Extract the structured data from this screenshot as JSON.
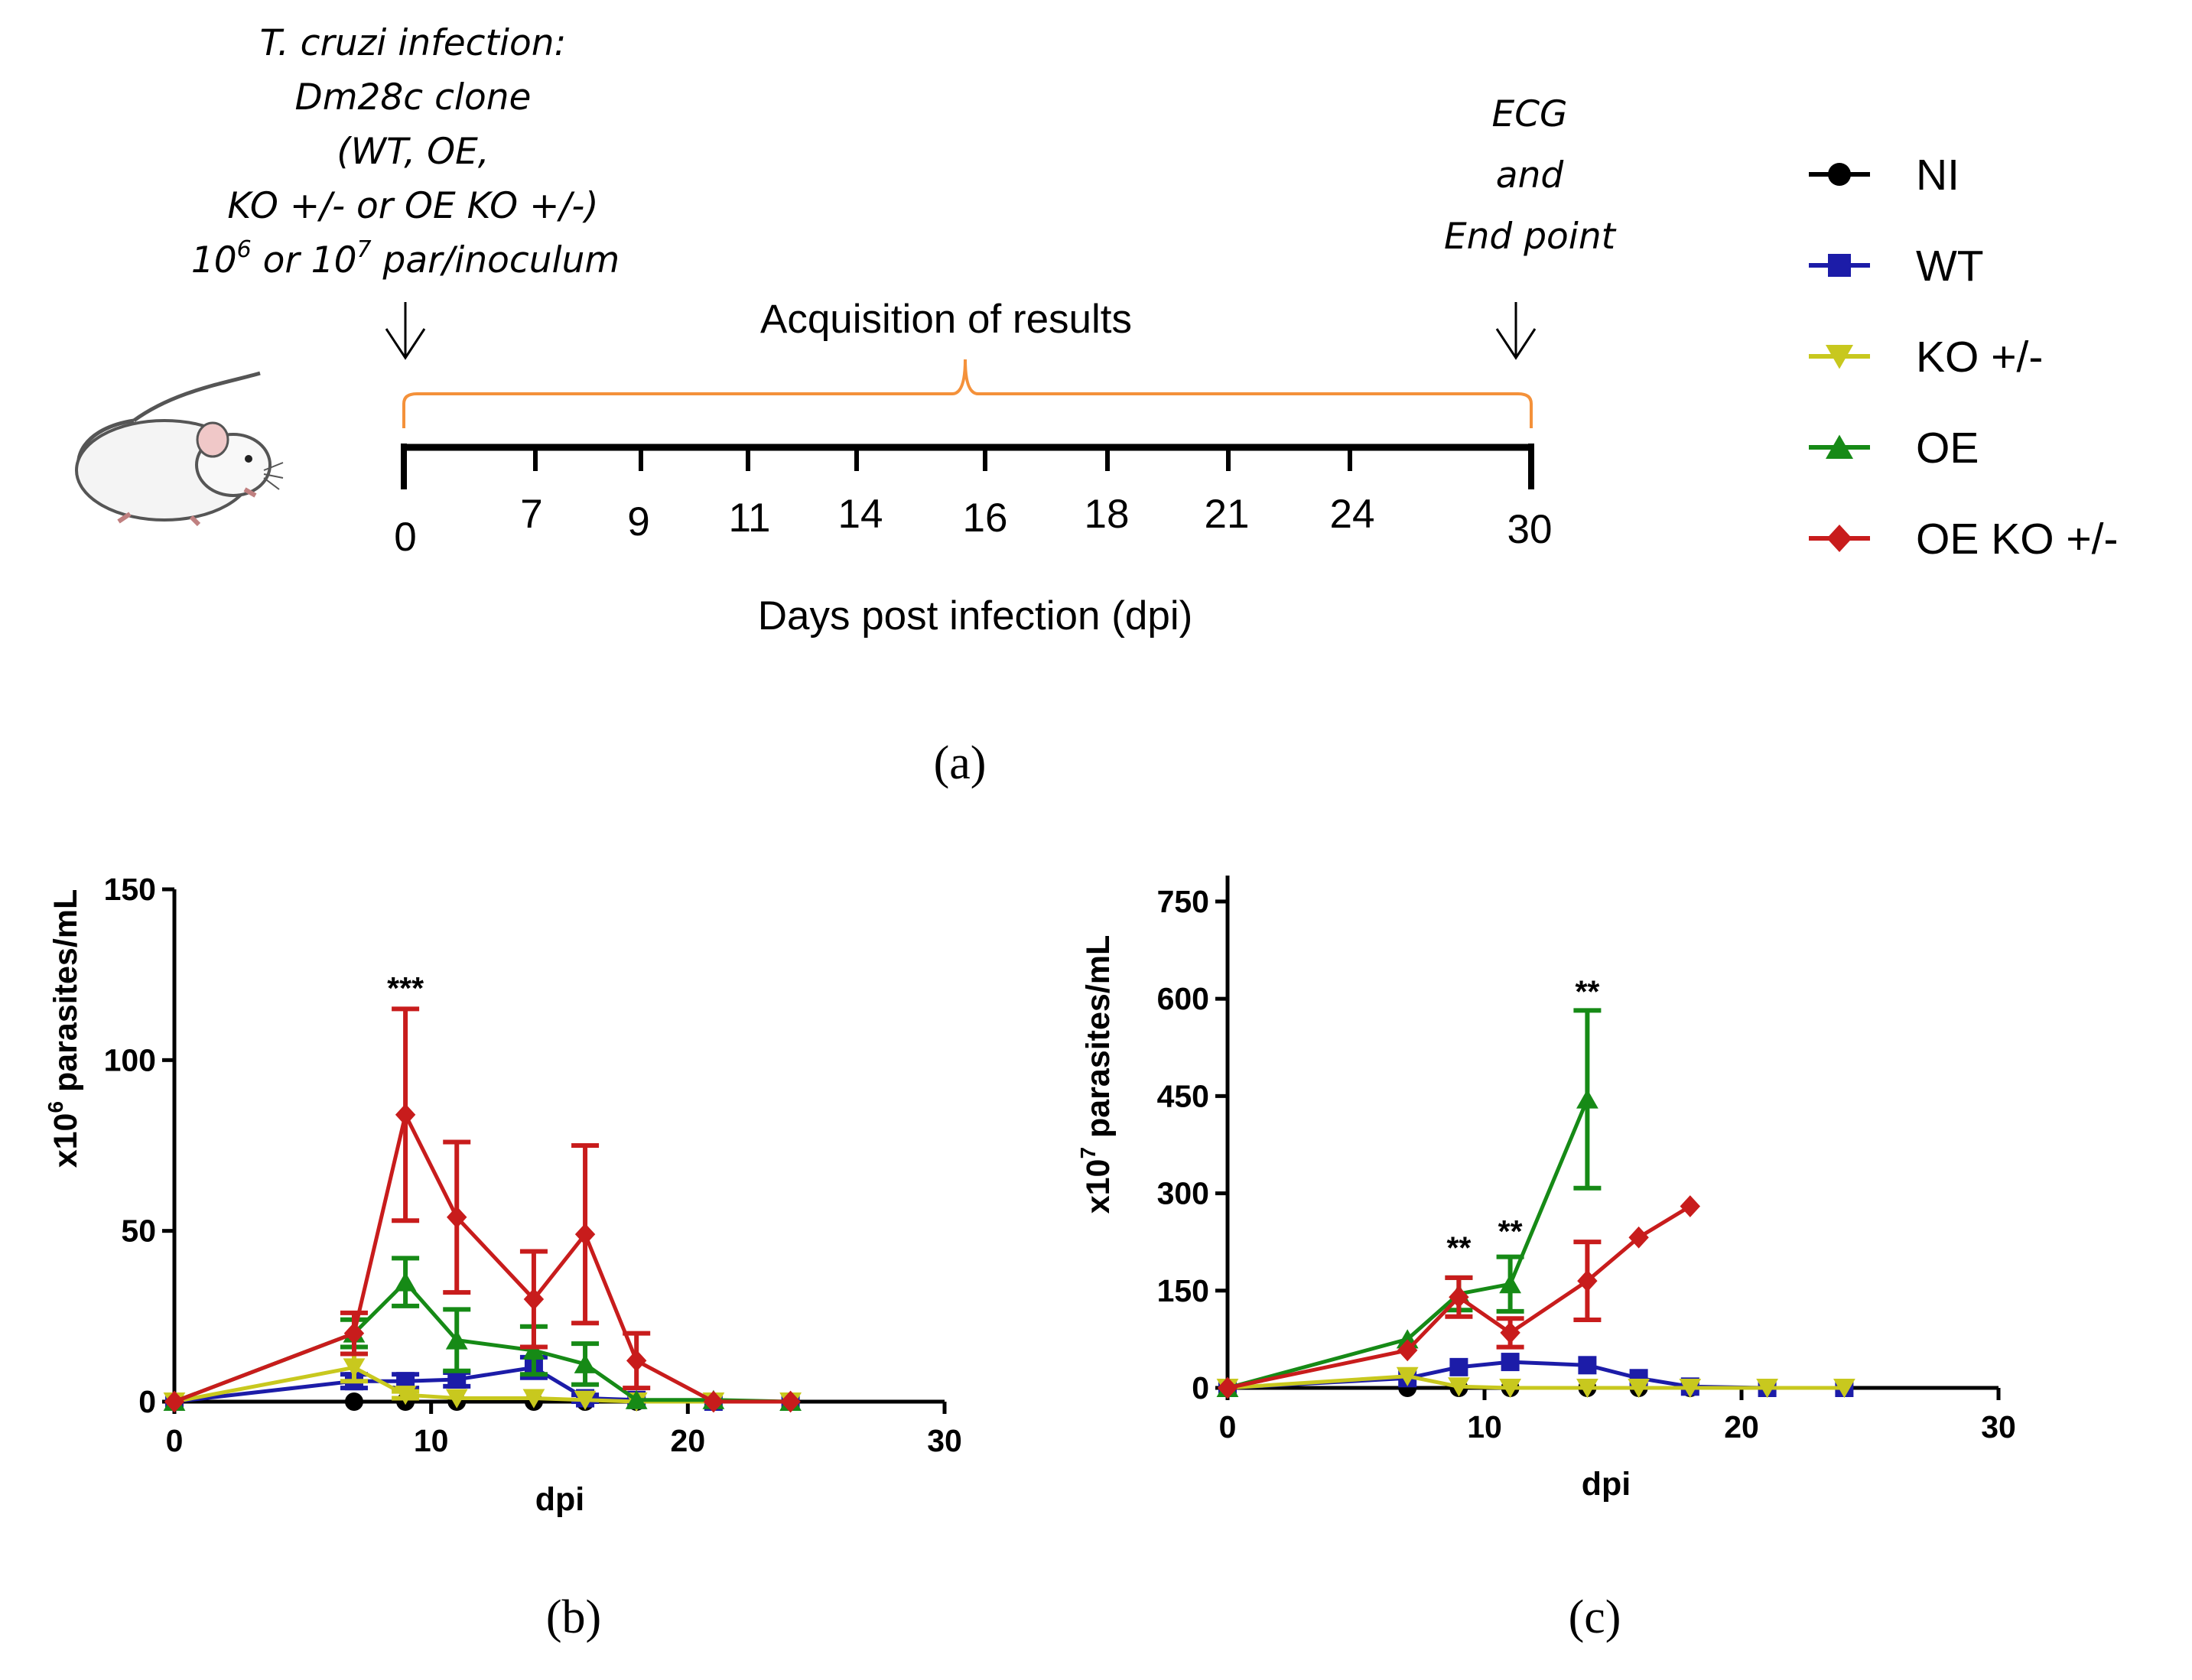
{
  "timeline": {
    "infection_lines": [
      "T. cruzi infection:",
      "Dm28c clone",
      "(WT, OE,",
      "KO +/- or OE KO +/-)"
    ],
    "inoculum": {
      "a": "10",
      "a_sup": "6",
      "b": " or 10",
      "b_sup": "7",
      "c": " par/inoculum"
    },
    "endpoint_lines": [
      "ECG",
      "and",
      "End point"
    ],
    "acquisition_label": "Acquisition of results",
    "ticks": [
      "0",
      "7",
      "9",
      "11",
      "14",
      "16",
      "18",
      "21",
      "24",
      "30"
    ],
    "axis_label": "Days post infection (dpi)",
    "bracket_color": "#f4913a",
    "icon": "mouse-icon"
  },
  "panel_labels": {
    "a": "(a)",
    "b": "(b)",
    "c": "(c)"
  },
  "legend": [
    {
      "name": "NI",
      "color": "#000000",
      "marker": "circle"
    },
    {
      "name": "WT",
      "color": "#1c1ca8",
      "marker": "square"
    },
    {
      "name": "KO +/-",
      "color": "#c8c81e",
      "marker": "triangle-down"
    },
    {
      "name": "OE",
      "color": "#168a16",
      "marker": "triangle-up"
    },
    {
      "name": "OE KO +/-",
      "color": "#c81c1c",
      "marker": "diamond"
    }
  ],
  "chart_data": [
    {
      "id": "b",
      "type": "line",
      "xlabel": "dpi",
      "ylabel_parts": {
        "pre": "x10",
        "sup": "6",
        "post": " parasites/mL"
      },
      "xlim": [
        0,
        30
      ],
      "ylim": [
        0,
        150
      ],
      "xticks": [
        0,
        10,
        20,
        30
      ],
      "yticks": [
        0,
        50,
        100,
        150
      ],
      "annotations": [
        {
          "text": "***",
          "x": 9,
          "y": 118
        }
      ],
      "series": [
        {
          "name": "NI",
          "points": [
            [
              0,
              0
            ],
            [
              7,
              0
            ],
            [
              9,
              0
            ],
            [
              11,
              0
            ],
            [
              14,
              0
            ],
            [
              16,
              0
            ],
            [
              18,
              0
            ],
            [
              21,
              0
            ],
            [
              24,
              0
            ]
          ],
          "err": [
            0,
            0,
            0,
            0,
            0,
            0,
            0,
            0,
            0
          ]
        },
        {
          "name": "WT",
          "points": [
            [
              0,
              0
            ],
            [
              7,
              6
            ],
            [
              9,
              6
            ],
            [
              11,
              6.5
            ],
            [
              14,
              10
            ],
            [
              16,
              1
            ],
            [
              18,
              0.5
            ],
            [
              21,
              0
            ],
            [
              24,
              0
            ]
          ],
          "err": [
            0,
            2,
            2,
            2,
            3,
            1,
            0,
            0,
            0
          ]
        },
        {
          "name": "KO +/-",
          "points": [
            [
              0,
              0
            ],
            [
              7,
              10
            ],
            [
              9,
              2
            ],
            [
              11,
              1
            ],
            [
              14,
              1
            ],
            [
              16,
              0.5
            ],
            [
              18,
              0
            ],
            [
              21,
              0
            ],
            [
              24,
              0
            ]
          ],
          "err": [
            0,
            4,
            1,
            0,
            0,
            0,
            0,
            0,
            0
          ]
        },
        {
          "name": "OE",
          "points": [
            [
              0,
              0
            ],
            [
              7,
              20
            ],
            [
              9,
              35
            ],
            [
              11,
              18
            ],
            [
              14,
              15
            ],
            [
              16,
              11
            ],
            [
              18,
              0.5
            ],
            [
              21,
              0.5
            ],
            [
              24,
              0
            ]
          ],
          "err": [
            0,
            4,
            7,
            9,
            7,
            6,
            0,
            0,
            0
          ]
        },
        {
          "name": "OE KO +/-",
          "points": [
            [
              0,
              0
            ],
            [
              7,
              20
            ],
            [
              9,
              84
            ],
            [
              11,
              54
            ],
            [
              14,
              30
            ],
            [
              16,
              49
            ],
            [
              18,
              12
            ],
            [
              21,
              0
            ],
            [
              24,
              0
            ]
          ],
          "err": [
            0,
            6,
            31,
            22,
            14,
            26,
            8,
            0,
            0
          ]
        }
      ]
    },
    {
      "id": "c",
      "type": "line",
      "xlabel": "dpi",
      "ylabel_parts": {
        "pre": "x10",
        "sup": "7",
        "post": " parasites/mL"
      },
      "xlim": [
        0,
        30
      ],
      "ylim": [
        0,
        790
      ],
      "xticks": [
        0,
        10,
        20,
        30
      ],
      "yticks": [
        0,
        150,
        300,
        450,
        600,
        750
      ],
      "annotations": [
        {
          "text": "**",
          "x": 9,
          "y": 200
        },
        {
          "text": "**",
          "x": 11,
          "y": 225
        },
        {
          "text": "**",
          "x": 14,
          "y": 595
        }
      ],
      "series": [
        {
          "name": "NI",
          "points": [
            [
              0,
              0
            ],
            [
              7,
              0
            ],
            [
              9,
              0
            ],
            [
              11,
              0
            ],
            [
              14,
              0
            ],
            [
              16,
              0
            ],
            [
              18,
              0
            ],
            [
              21,
              0
            ],
            [
              24,
              0
            ]
          ],
          "err": [
            0,
            0,
            0,
            0,
            0,
            0,
            0,
            0,
            0
          ]
        },
        {
          "name": "WT",
          "points": [
            [
              0,
              0
            ],
            [
              7,
              15
            ],
            [
              9,
              32
            ],
            [
              11,
              40
            ],
            [
              14,
              35
            ],
            [
              16,
              15
            ],
            [
              18,
              2
            ],
            [
              21,
              0
            ],
            [
              24,
              0
            ]
          ],
          "err": [
            0,
            0,
            0,
            0,
            0,
            0,
            0,
            0,
            0
          ]
        },
        {
          "name": "KO +/-",
          "points": [
            [
              0,
              0
            ],
            [
              7,
              18
            ],
            [
              9,
              2
            ],
            [
              11,
              0
            ],
            [
              14,
              0
            ],
            [
              16,
              0
            ],
            [
              18,
              0
            ],
            [
              21,
              0
            ],
            [
              24,
              0
            ]
          ],
          "err": [
            0,
            0,
            0,
            0,
            0,
            0,
            0,
            0,
            0
          ]
        },
        {
          "name": "OE",
          "points": [
            [
              0,
              0
            ],
            [
              7,
              75
            ],
            [
              9,
              145
            ],
            [
              11,
              160
            ],
            [
              14,
              445
            ]
          ],
          "err": [
            0,
            0,
            25,
            42,
            137
          ]
        },
        {
          "name": "OE KO +/-",
          "points": [
            [
              0,
              0
            ],
            [
              7,
              58
            ],
            [
              9,
              140
            ],
            [
              11,
              85
            ],
            [
              14,
              165
            ],
            [
              16,
              232
            ],
            [
              18,
              280
            ]
          ],
          "err": [
            0,
            0,
            30,
            22,
            60,
            0,
            0
          ]
        }
      ]
    }
  ]
}
